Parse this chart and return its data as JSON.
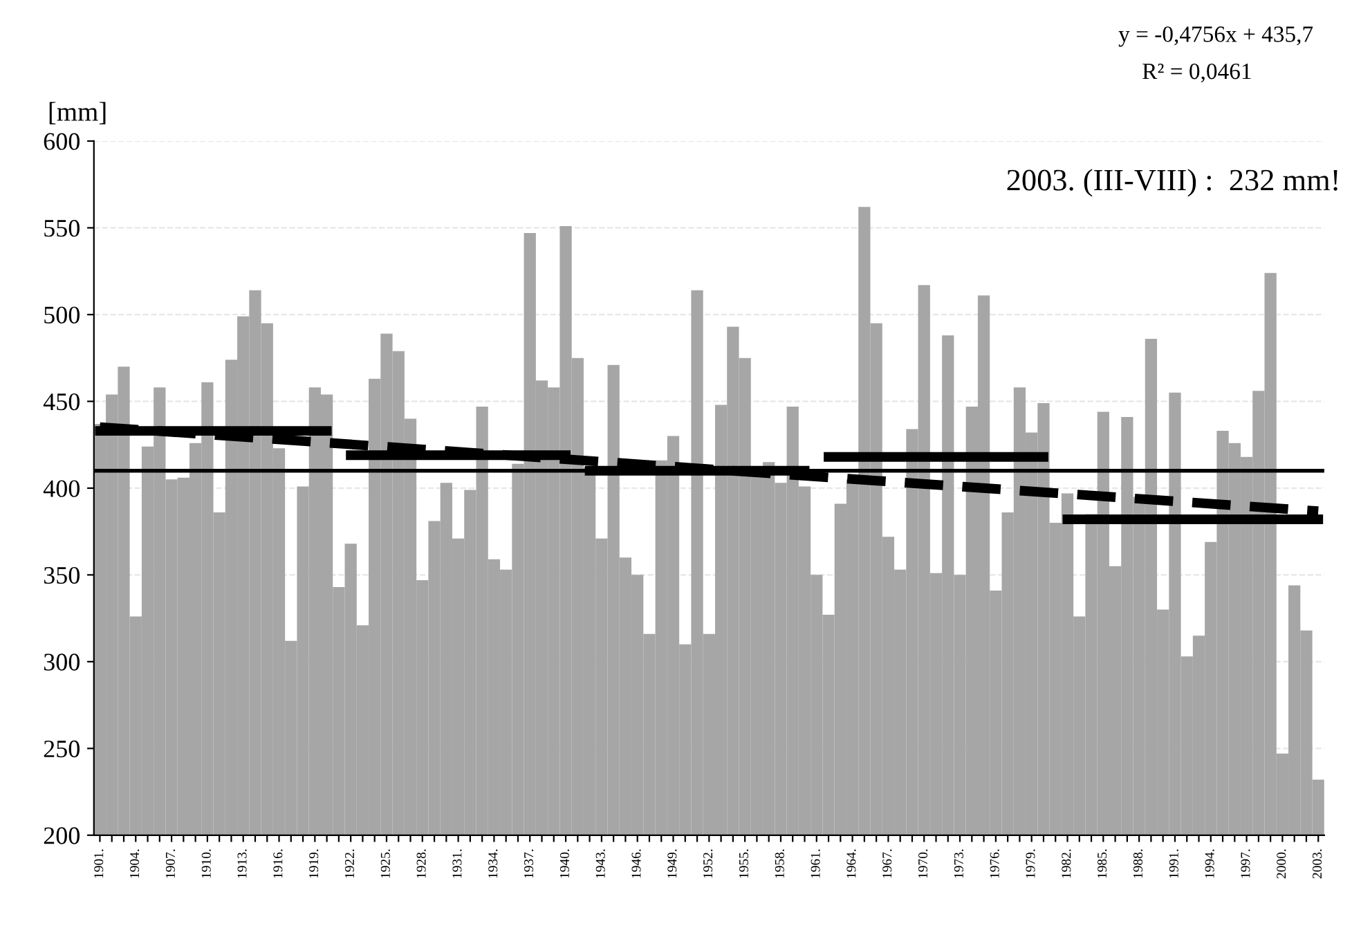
{
  "chart_data": {
    "type": "bar",
    "ylabel": "[mm]",
    "categories": [
      "1901.",
      null,
      null,
      "1904.",
      null,
      null,
      "1907.",
      null,
      null,
      "1910.",
      null,
      null,
      "1913.",
      null,
      null,
      "1916.",
      null,
      null,
      "1919.",
      null,
      null,
      "1922.",
      null,
      null,
      "1925.",
      null,
      null,
      "1928.",
      null,
      null,
      "1931.",
      null,
      null,
      "1934.",
      null,
      null,
      "1937.",
      null,
      null,
      "1940.",
      null,
      null,
      "1943.",
      null,
      null,
      "1946.",
      null,
      null,
      "1949.",
      null,
      null,
      "1952.",
      null,
      null,
      "1955.",
      null,
      null,
      "1958.",
      null,
      null,
      "1961.",
      null,
      null,
      "1964.",
      null,
      null,
      "1967.",
      null,
      null,
      "1970.",
      null,
      null,
      "1973.",
      null,
      null,
      "1976.",
      null,
      null,
      "1979.",
      null,
      null,
      "1982.",
      null,
      null,
      "1985.",
      null,
      null,
      "1988.",
      null,
      null,
      "1991.",
      null,
      null,
      "1994.",
      null,
      null,
      "1997.",
      null,
      null,
      "2000.",
      null,
      null,
      "2003."
    ],
    "series": [
      {
        "color": "#a6a6a6",
        "values": [
          437,
          454,
          470,
          326,
          424,
          458,
          405,
          406,
          426,
          461,
          386,
          474,
          499,
          514,
          495,
          423,
          312,
          401,
          458,
          454,
          343,
          368,
          321,
          463,
          489,
          479,
          440,
          347,
          381,
          403,
          371,
          399,
          447,
          359,
          353,
          414,
          547,
          462,
          458,
          551,
          475,
          412,
          371,
          471,
          360,
          350,
          316,
          416,
          430,
          310,
          514,
          316,
          448,
          493,
          475,
          409,
          415,
          403,
          447,
          401,
          350,
          327,
          391,
          405,
          562,
          495,
          372,
          353,
          434,
          517,
          351,
          488,
          350,
          447,
          511,
          341,
          386,
          458,
          432,
          449,
          380,
          397,
          326,
          385,
          444,
          355,
          441,
          395,
          486,
          330,
          455,
          303,
          315,
          369,
          433,
          426,
          418,
          456,
          524,
          247,
          344,
          318,
          232
        ]
      },
      {
        "type": "line",
        "color": "#000000",
        "line_style": "solid",
        "values": [
          433,
          433,
          433,
          433,
          433,
          433,
          433,
          433,
          433,
          433,
          433,
          433,
          433,
          433,
          433,
          433,
          433,
          433,
          433,
          433,
          null,
          419,
          419,
          419,
          419,
          419,
          419,
          419,
          419,
          419,
          419,
          419,
          419,
          419,
          419,
          419,
          419,
          419,
          419,
          419,
          null,
          410,
          410,
          410,
          410,
          410,
          410,
          410,
          410,
          410,
          410,
          410,
          410,
          410,
          410,
          410,
          410,
          410,
          410,
          410,
          null,
          418,
          418,
          418,
          418,
          418,
          418,
          418,
          418,
          418,
          418,
          418,
          418,
          418,
          418,
          418,
          418,
          418,
          418,
          418,
          null,
          382,
          382,
          382,
          382,
          382,
          382,
          382,
          382,
          382,
          382,
          382,
          382,
          382,
          382,
          382,
          382,
          382,
          382,
          382,
          382,
          382,
          382
        ]
      },
      {
        "type": "line",
        "color": "#000000",
        "line_style": "dashed",
        "x": [
          "1901.",
          "2003."
        ],
        "values": [
          435.2,
          386.7
        ]
      }
    ],
    "ref_lines": [
      {
        "axis": "y",
        "value": 410,
        "color": "#000000"
      }
    ],
    "ylim": [
      200,
      600
    ],
    "yticks": [
      200,
      250,
      300,
      350,
      400,
      450,
      500,
      550,
      600
    ],
    "grid": "y",
    "annotations": [
      "y = -0,4756x + 435,7",
      "R² = 0,0461",
      "2003. (III-VIII) :  232 mm!"
    ]
  }
}
